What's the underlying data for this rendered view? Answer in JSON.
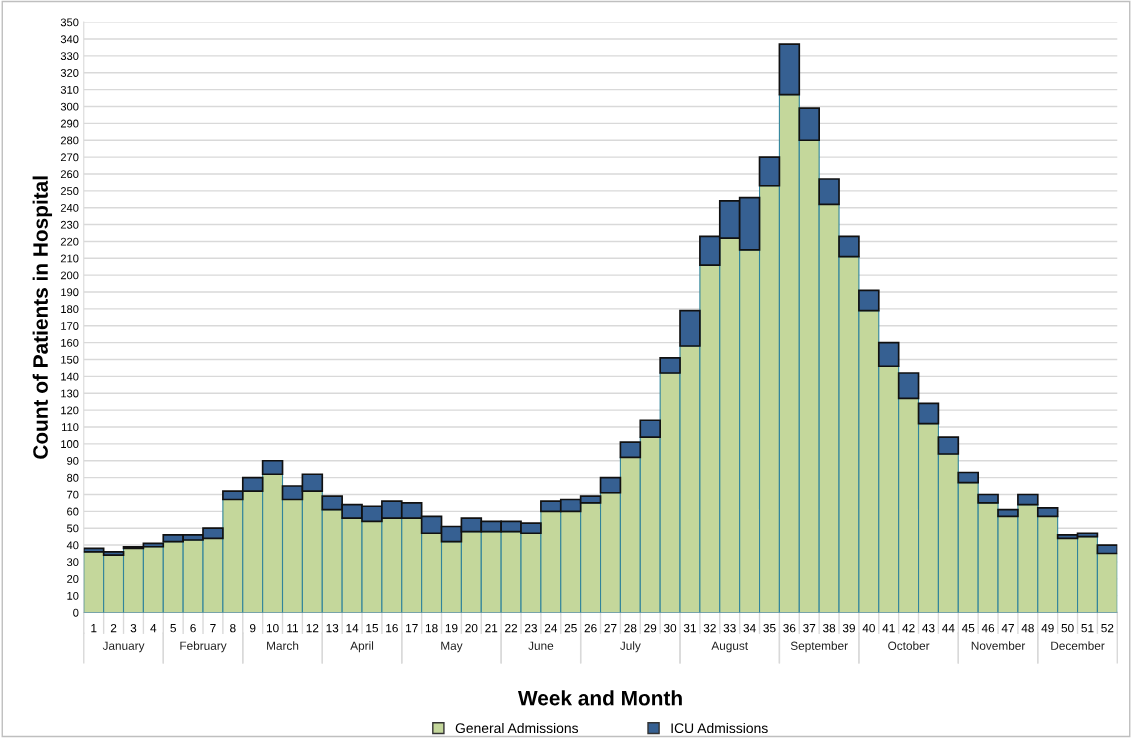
{
  "chart_data": {
    "type": "bar",
    "stacked": true,
    "xlabel": "Week and Month",
    "ylabel": "Count of Patients in Hospital",
    "categories": [
      "1",
      "2",
      "3",
      "4",
      "5",
      "6",
      "7",
      "8",
      "9",
      "10",
      "11",
      "12",
      "13",
      "14",
      "15",
      "16",
      "17",
      "18",
      "19",
      "20",
      "21",
      "22",
      "23",
      "24",
      "25",
      "26",
      "27",
      "28",
      "29",
      "30",
      "31",
      "32",
      "33",
      "34",
      "35",
      "36",
      "37",
      "38",
      "39",
      "40",
      "41",
      "42",
      "43",
      "44",
      "45",
      "46",
      "47",
      "48",
      "49",
      "50",
      "51",
      "52"
    ],
    "series": [
      {
        "name": "General Admissions",
        "color": "#c4d79b",
        "values": [
          36,
          34,
          38,
          39,
          42,
          43,
          44,
          67,
          72,
          82,
          67,
          72,
          61,
          56,
          54,
          56,
          56,
          47,
          42,
          48,
          48,
          48,
          47,
          60,
          60,
          65,
          71,
          92,
          104,
          142,
          158,
          206,
          222,
          215,
          253,
          307,
          280,
          242,
          211,
          179,
          146,
          127,
          112,
          94,
          77,
          65,
          57,
          64,
          57,
          44,
          45,
          35
        ]
      },
      {
        "name": "ICU Admissions",
        "color": "#366092",
        "values": [
          2,
          2,
          1,
          2,
          4,
          3,
          6,
          5,
          8,
          8,
          8,
          10,
          8,
          8,
          9,
          10,
          9,
          10,
          9,
          8,
          6,
          6,
          6,
          6,
          7,
          4,
          9,
          9,
          10,
          9,
          21,
          17,
          22,
          31,
          17,
          30,
          19,
          15,
          12,
          12,
          14,
          15,
          12,
          10,
          6,
          5,
          4,
          6,
          5,
          2,
          2,
          5
        ]
      }
    ],
    "annotations": [
      "January",
      "February",
      "March",
      "April",
      "May",
      "June",
      "July",
      "August",
      "September",
      "October",
      "November",
      "December"
    ],
    "ylim": [
      0,
      350
    ],
    "yticks": [
      0,
      10,
      20,
      30,
      40,
      50,
      60,
      70,
      80,
      90,
      100,
      110,
      120,
      130,
      140,
      150,
      160,
      170,
      180,
      190,
      200,
      210,
      220,
      230,
      240,
      250,
      260,
      270,
      280,
      290,
      300,
      310,
      320,
      330,
      340,
      350
    ],
    "grid": "y",
    "legend": "bottom"
  }
}
